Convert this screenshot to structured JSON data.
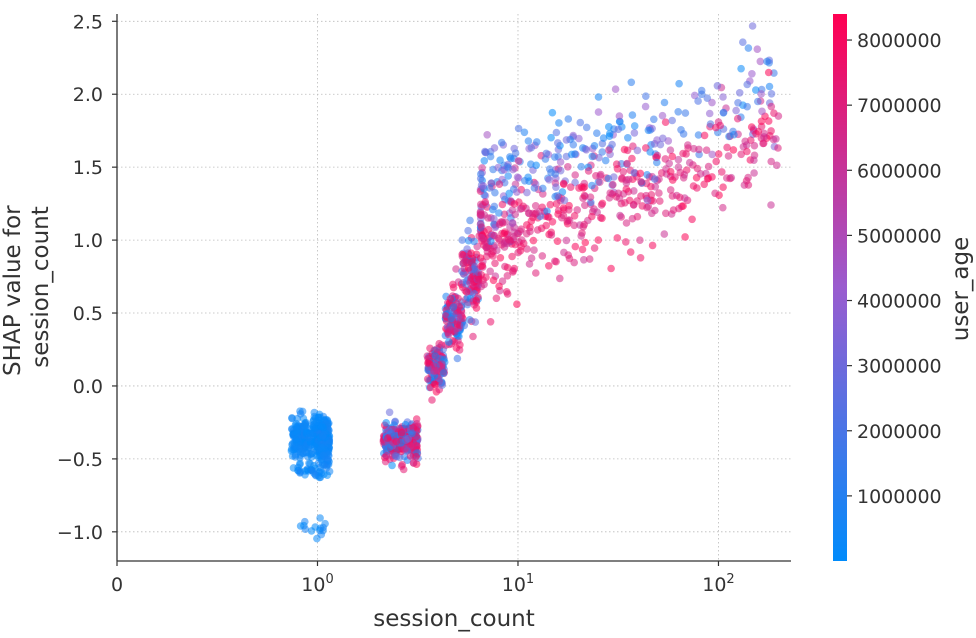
{
  "chart_data": {
    "type": "scatter",
    "title": "",
    "xlabel": "session_count",
    "ylabel_lines": [
      "SHAP value for",
      "session_count"
    ],
    "x_scale": "symlog",
    "xlim": [
      0,
      230
    ],
    "ylim": [
      -1.2,
      2.55
    ],
    "x_ticks": [
      {
        "value": 0,
        "base": "0",
        "exp": ""
      },
      {
        "value": 1,
        "base": "10",
        "exp": "0"
      },
      {
        "value": 10,
        "base": "10",
        "exp": "1"
      },
      {
        "value": 100,
        "base": "10",
        "exp": "2"
      }
    ],
    "y_ticks": [
      {
        "value": -1.0,
        "label": "−1.0"
      },
      {
        "value": -0.5,
        "label": "−0.5"
      },
      {
        "value": 0.0,
        "label": "0.0"
      },
      {
        "value": 0.5,
        "label": "0.5"
      },
      {
        "value": 1.0,
        "label": "1.0"
      },
      {
        "value": 1.5,
        "label": "1.5"
      },
      {
        "value": 2.0,
        "label": "2.0"
      },
      {
        "value": 2.5,
        "label": "2.5"
      }
    ],
    "grid": true,
    "color_feature": "user_age",
    "color_range": [
      0,
      8400000
    ],
    "colorbar_ticks": [
      {
        "value": 1000000,
        "label": "1000000"
      },
      {
        "value": 2000000,
        "label": "2000000"
      },
      {
        "value": 3000000,
        "label": "3000000"
      },
      {
        "value": 4000000,
        "label": "4000000"
      },
      {
        "value": 5000000,
        "label": "5000000"
      },
      {
        "value": 6000000,
        "label": "6000000"
      },
      {
        "value": 7000000,
        "label": "7000000"
      },
      {
        "value": 8000000,
        "label": "8000000"
      }
    ],
    "colors": {
      "low": "#008bfb",
      "mid": "#9a5ccf",
      "high": "#ff0052"
    },
    "groups": [
      {
        "x": 1,
        "x_jitter": 0.28,
        "y_mean": -0.36,
        "y_sd": 0.07,
        "count": 360,
        "color_dist": "low"
      },
      {
        "x": 1,
        "x_jitter": 0.28,
        "y_mean": -0.58,
        "y_sd": 0.03,
        "count": 40,
        "color_dist": "low"
      },
      {
        "x": 1,
        "x_jitter": 0.2,
        "y_mean": -0.97,
        "y_sd": 0.04,
        "count": 14,
        "color_dist": "low"
      },
      {
        "x": 2.6,
        "x_jitter": 0.4,
        "y_mean": -0.37,
        "y_sd": 0.06,
        "count": 300,
        "color_dist": "mixed"
      },
      {
        "x": 3.9,
        "x_jitter": 0.2,
        "y_mean": 0.13,
        "y_sd": 0.07,
        "count": 120,
        "color_dist": "mixed"
      },
      {
        "x": 4.8,
        "x_jitter": 0.2,
        "y_mean": 0.45,
        "y_sd": 0.1,
        "count": 120,
        "color_dist": "mixed"
      },
      {
        "x": 5.8,
        "x_jitter": 0.2,
        "y_mean": 0.75,
        "y_sd": 0.14,
        "count": 110,
        "color_dist": "mixed"
      }
    ],
    "tail": {
      "x_min": 6.5,
      "x_max": 200,
      "count": 700,
      "y_at_x10": 1.1,
      "slope_per_decade": 0.5,
      "y_sd": 0.18,
      "color_dist": "age_split"
    }
  }
}
